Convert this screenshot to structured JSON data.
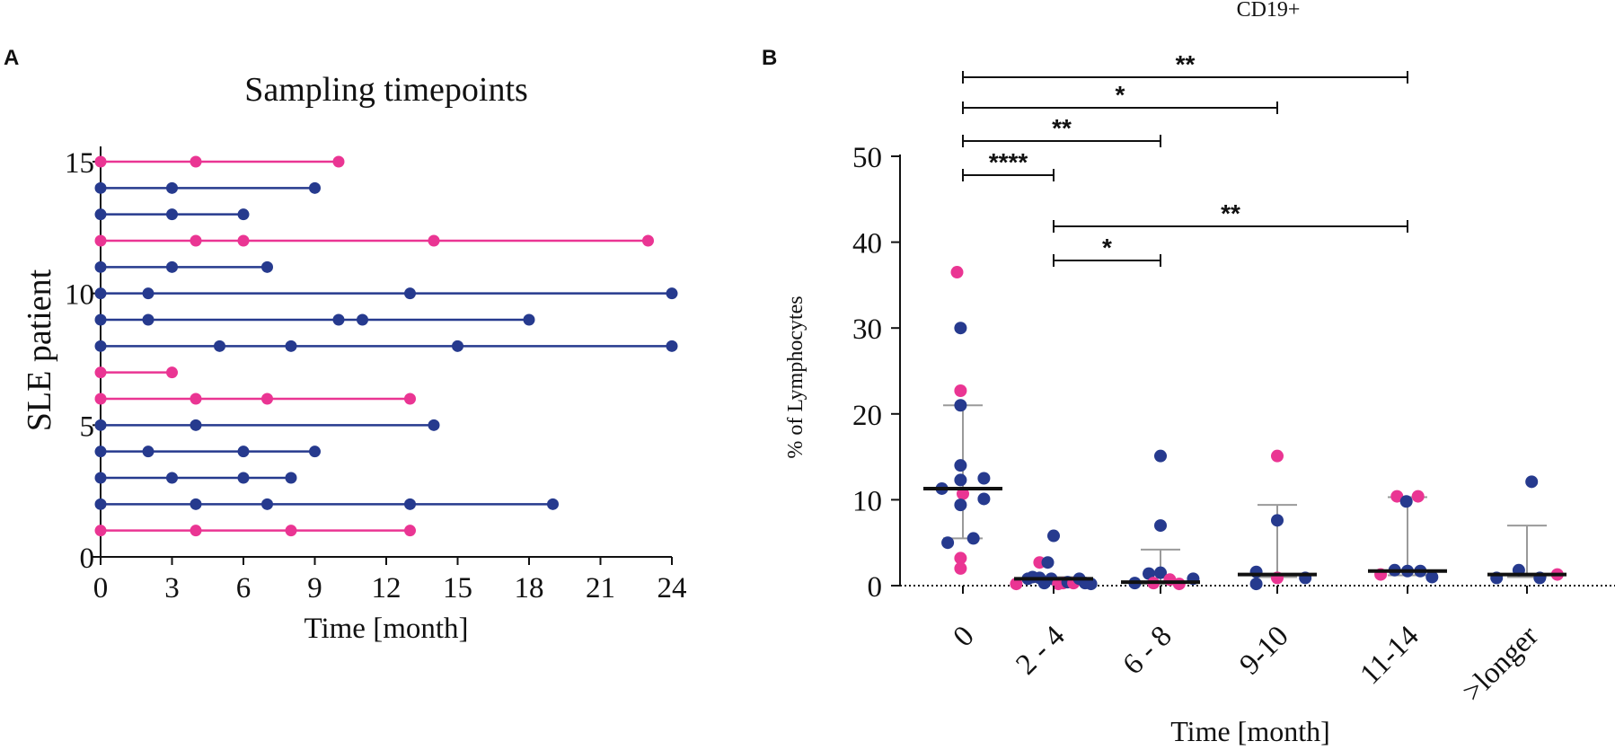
{
  "colors": {
    "pink": "#ea3593",
    "navy": "#263a8e",
    "black": "#111111",
    "grey": "#9a9a9a"
  },
  "chart_data": [
    {
      "panel": "A",
      "type": "scatter",
      "title": "Sampling timepoints",
      "xlabel": "Time [month]",
      "ylabel": "SLE patient",
      "xlim": [
        0,
        24
      ],
      "ylim": [
        0,
        15
      ],
      "xticks": [
        0,
        3,
        6,
        9,
        12,
        15,
        18,
        21,
        24
      ],
      "yticks": [
        0,
        5,
        10,
        15
      ],
      "patients": [
        {
          "id": 1,
          "group": "pink",
          "times": [
            0,
            4,
            8,
            13
          ]
        },
        {
          "id": 2,
          "group": "navy",
          "times": [
            0,
            4,
            7,
            13,
            19
          ]
        },
        {
          "id": 3,
          "group": "navy",
          "times": [
            0,
            3,
            6,
            8
          ]
        },
        {
          "id": 4,
          "group": "navy",
          "times": [
            0,
            2,
            6,
            9
          ]
        },
        {
          "id": 5,
          "group": "navy",
          "times": [
            0,
            4,
            14
          ]
        },
        {
          "id": 6,
          "group": "pink",
          "times": [
            0,
            4,
            7,
            13
          ]
        },
        {
          "id": 7,
          "group": "pink",
          "times": [
            0,
            3
          ]
        },
        {
          "id": 8,
          "group": "navy",
          "times": [
            0,
            5,
            8,
            15,
            24
          ]
        },
        {
          "id": 9,
          "group": "navy",
          "times": [
            0,
            2,
            10,
            11,
            18
          ]
        },
        {
          "id": 10,
          "group": "navy",
          "times": [
            0,
            2,
            13,
            24
          ]
        },
        {
          "id": 11,
          "group": "navy",
          "times": [
            0,
            3,
            7
          ]
        },
        {
          "id": 12,
          "group": "pink",
          "times": [
            0,
            4,
            6,
            14,
            23
          ]
        },
        {
          "id": 13,
          "group": "navy",
          "times": [
            0,
            3,
            6
          ]
        },
        {
          "id": 14,
          "group": "navy",
          "times": [
            0,
            3,
            9
          ]
        },
        {
          "id": 15,
          "group": "pink",
          "times": [
            0,
            4,
            10
          ]
        }
      ]
    },
    {
      "panel": "B",
      "type": "scatter",
      "title": "CD19+",
      "xlabel": "Time [month]",
      "ylabel": "% of Lymphocytes",
      "ylim": [
        0,
        50
      ],
      "yticks": [
        0,
        10,
        20,
        30,
        40,
        50
      ],
      "categories": [
        "0",
        "2 - 4",
        "6 - 8",
        "9-10",
        "11-14",
        ">longer"
      ],
      "groups": [
        {
          "category": "0",
          "median": 11.3,
          "err": [
            5.5,
            21
          ],
          "points": [
            {
              "d": -0.05,
              "y": 36.5,
              "c": "pink"
            },
            {
              "d": -0.02,
              "y": 30,
              "c": "navy"
            },
            {
              "d": -0.02,
              "y": 22.7,
              "c": "pink"
            },
            {
              "d": -0.02,
              "y": 21,
              "c": "navy"
            },
            {
              "d": -0.02,
              "y": 14,
              "c": "navy"
            },
            {
              "d": -0.18,
              "y": 11.3,
              "c": "navy"
            },
            {
              "d": -0.02,
              "y": 12.3,
              "c": "navy"
            },
            {
              "d": 0.18,
              "y": 12.5,
              "c": "navy"
            },
            {
              "d": 0.0,
              "y": 10.7,
              "c": "pink"
            },
            {
              "d": 0.18,
              "y": 10.1,
              "c": "navy"
            },
            {
              "d": -0.02,
              "y": 9.4,
              "c": "navy"
            },
            {
              "d": -0.13,
              "y": 5,
              "c": "navy"
            },
            {
              "d": 0.09,
              "y": 5.5,
              "c": "navy"
            },
            {
              "d": -0.02,
              "y": 3.2,
              "c": "pink"
            },
            {
              "d": -0.02,
              "y": 2.0,
              "c": "pink"
            }
          ]
        },
        {
          "category": "2 - 4",
          "median": 0.8,
          "err": [
            0.4,
            1.0
          ],
          "points": [
            {
              "d": 0.0,
              "y": 5.8,
              "c": "navy"
            },
            {
              "d": -0.12,
              "y": 2.7,
              "c": "pink"
            },
            {
              "d": -0.05,
              "y": 2.7,
              "c": "navy"
            },
            {
              "d": -0.32,
              "y": 0.2,
              "c": "pink"
            },
            {
              "d": -0.22,
              "y": 0.8,
              "c": "navy"
            },
            {
              "d": -0.18,
              "y": 1.0,
              "c": "navy"
            },
            {
              "d": -0.12,
              "y": 0.9,
              "c": "navy"
            },
            {
              "d": -0.08,
              "y": 0.3,
              "c": "navy"
            },
            {
              "d": -0.02,
              "y": 0.8,
              "c": "navy"
            },
            {
              "d": 0.04,
              "y": 0.2,
              "c": "pink"
            },
            {
              "d": 0.08,
              "y": 0.3,
              "c": "pink"
            },
            {
              "d": 0.12,
              "y": 0.4,
              "c": "navy"
            },
            {
              "d": 0.17,
              "y": 0.3,
              "c": "pink"
            },
            {
              "d": 0.22,
              "y": 0.8,
              "c": "navy"
            },
            {
              "d": 0.27,
              "y": 0.3,
              "c": "navy"
            },
            {
              "d": 0.32,
              "y": 0.2,
              "c": "navy"
            }
          ]
        },
        {
          "category": "6 - 8",
          "median": 0.4,
          "err": [
            0.2,
            4.2
          ],
          "points": [
            {
              "d": 0.0,
              "y": 15.1,
              "c": "navy"
            },
            {
              "d": 0.0,
              "y": 7.0,
              "c": "navy"
            },
            {
              "d": -0.1,
              "y": 1.4,
              "c": "navy"
            },
            {
              "d": -0.22,
              "y": 0.3,
              "c": "navy"
            },
            {
              "d": -0.06,
              "y": 0.3,
              "c": "pink"
            },
            {
              "d": 0.0,
              "y": 1.5,
              "c": "navy"
            },
            {
              "d": 0.08,
              "y": 0.7,
              "c": "pink"
            },
            {
              "d": 0.16,
              "y": 0.2,
              "c": "pink"
            },
            {
              "d": 0.28,
              "y": 0.8,
              "c": "navy"
            }
          ]
        },
        {
          "category": "9-10",
          "median": 1.3,
          "err": [
            1.0,
            9.4
          ],
          "points": [
            {
              "d": 0.0,
              "y": 15.1,
              "c": "pink"
            },
            {
              "d": 0.0,
              "y": 7.6,
              "c": "navy"
            },
            {
              "d": -0.18,
              "y": 1.6,
              "c": "navy"
            },
            {
              "d": -0.18,
              "y": 0.2,
              "c": "navy"
            },
            {
              "d": 0.0,
              "y": 0.9,
              "c": "pink"
            },
            {
              "d": 0.24,
              "y": 0.9,
              "c": "navy"
            }
          ]
        },
        {
          "category": "11-14",
          "median": 1.7,
          "err": [
            1.2,
            10.3
          ],
          "points": [
            {
              "d": -0.09,
              "y": 10.4,
              "c": "pink"
            },
            {
              "d": -0.01,
              "y": 9.8,
              "c": "navy"
            },
            {
              "d": 0.09,
              "y": 10.4,
              "c": "pink"
            },
            {
              "d": -0.23,
              "y": 1.3,
              "c": "pink"
            },
            {
              "d": -0.11,
              "y": 1.8,
              "c": "navy"
            },
            {
              "d": 0.0,
              "y": 1.7,
              "c": "navy"
            },
            {
              "d": 0.11,
              "y": 1.7,
              "c": "navy"
            },
            {
              "d": 0.21,
              "y": 1.0,
              "c": "navy"
            }
          ]
        },
        {
          "category": ">longer",
          "median": 1.3,
          "err": [
            1.0,
            7.0
          ],
          "points": [
            {
              "d": 0.04,
              "y": 12.1,
              "c": "navy"
            },
            {
              "d": -0.26,
              "y": 0.9,
              "c": "navy"
            },
            {
              "d": -0.07,
              "y": 1.8,
              "c": "navy"
            },
            {
              "d": 0.11,
              "y": 0.9,
              "c": "navy"
            },
            {
              "d": 0.26,
              "y": 1.3,
              "c": "pink"
            }
          ]
        }
      ],
      "significance": [
        {
          "from": "0",
          "to": "11-14",
          "label": "**"
        },
        {
          "from": "0",
          "to": "9-10",
          "label": "*"
        },
        {
          "from": "0",
          "to": "6 - 8",
          "label": "**"
        },
        {
          "from": "0",
          "to": "2 - 4",
          "label": "****"
        },
        {
          "from": "2 - 4",
          "to": "11-14",
          "label": "**"
        },
        {
          "from": "2 - 4",
          "to": "6 - 8",
          "label": "*"
        }
      ]
    }
  ],
  "panel_labels": {
    "a": "A",
    "b": "B"
  }
}
